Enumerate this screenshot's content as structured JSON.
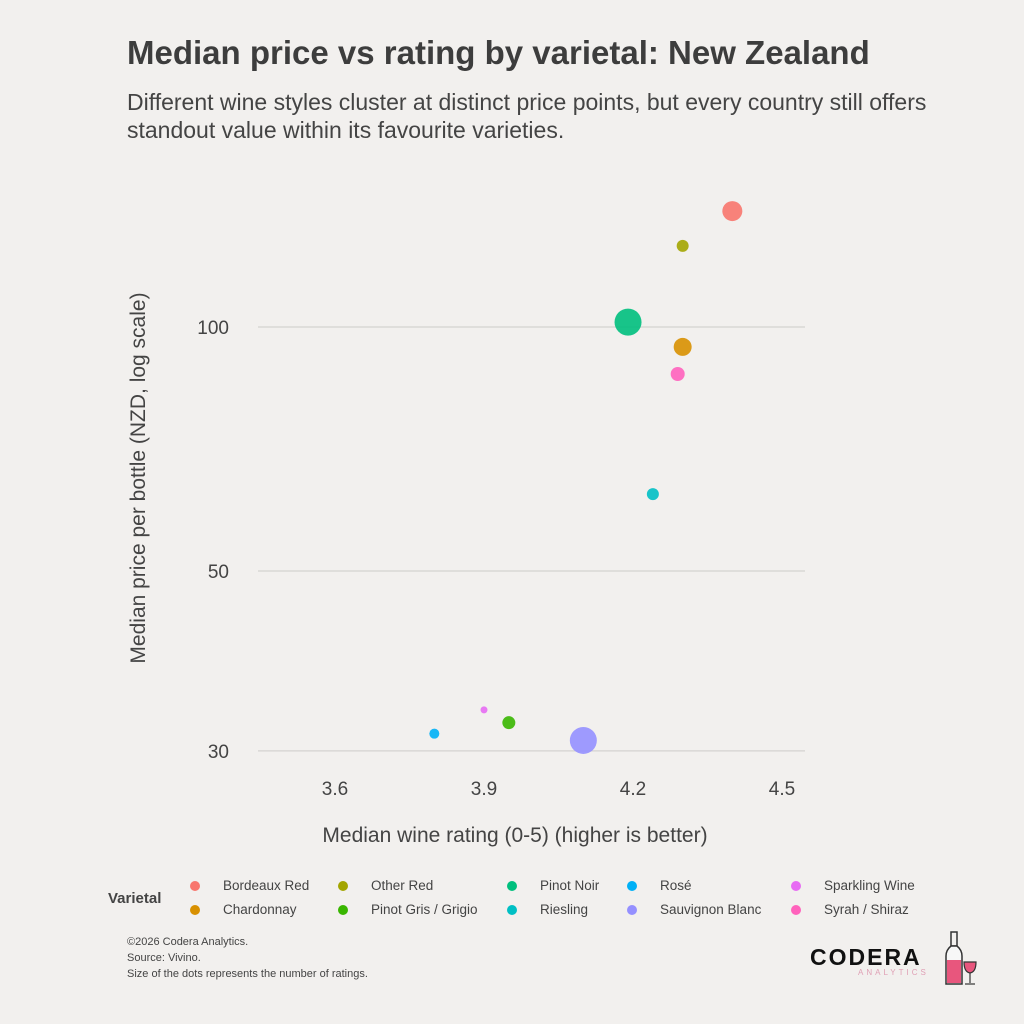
{
  "title": "Median price vs rating by varietal: New Zealand",
  "subtitle": "Different wine styles cluster at distinct price points, but every country still offers standout value within its favourite varieties.",
  "chart_data": {
    "type": "scatter",
    "xlabel": "Median wine rating (0-5) (higher is better)",
    "ylabel": "Median price per bottle (NZD, log scale)",
    "x_ticks": [
      3.6,
      3.9,
      4.2,
      4.5
    ],
    "y_ticks": [
      30,
      50,
      100
    ],
    "xlim": [
      3.445,
      4.546
    ],
    "ylim_log": [
      28.5,
      155
    ],
    "y_scale": "log",
    "legend_title": "Varietal",
    "legend_placement": "bottom",
    "points": [
      {
        "name": "Bordeaux Red",
        "x": 4.4,
        "y": 139,
        "size": 10,
        "color": "#F8766D"
      },
      {
        "name": "Chardonnay",
        "x": 4.3,
        "y": 94.5,
        "size": 9,
        "color": "#D89000"
      },
      {
        "name": "Other Red",
        "x": 4.3,
        "y": 125.9,
        "size": 6,
        "color": "#A3A500"
      },
      {
        "name": "Pinot Gris / Grigio",
        "x": 3.95,
        "y": 32.5,
        "size": 6.5,
        "color": "#39B600"
      },
      {
        "name": "Pinot Noir",
        "x": 4.19,
        "y": 101.4,
        "size": 13.5,
        "color": "#00BF7D"
      },
      {
        "name": "Riesling",
        "x": 4.24,
        "y": 62.2,
        "size": 6,
        "color": "#00BFC4"
      },
      {
        "name": "Rosé",
        "x": 3.8,
        "y": 31.5,
        "size": 5,
        "color": "#00B0F6"
      },
      {
        "name": "Sauvignon Blanc",
        "x": 4.1,
        "y": 30.9,
        "size": 13.5,
        "color": "#9590FF"
      },
      {
        "name": "Sparkling Wine",
        "x": 3.9,
        "y": 33.7,
        "size": 3.5,
        "color": "#E76BF3"
      },
      {
        "name": "Syrah / Shiraz",
        "x": 4.29,
        "y": 87.5,
        "size": 7,
        "color": "#FF62BC"
      }
    ]
  },
  "legend_order": [
    "Bordeaux Red",
    "Chardonnay",
    "Other Red",
    "Pinot Gris / Grigio",
    "Pinot Noir",
    "Riesling",
    "Rosé",
    "Sauvignon Blanc",
    "Sparkling Wine",
    "Syrah / Shiraz"
  ],
  "footer": {
    "copyright": "©2026 Codera Analytics.",
    "source": "Source: Vivino.",
    "note": "Size of the dots represents the number of ratings."
  },
  "logo": {
    "main": "CODERA",
    "sub": "ANALYTICS"
  }
}
